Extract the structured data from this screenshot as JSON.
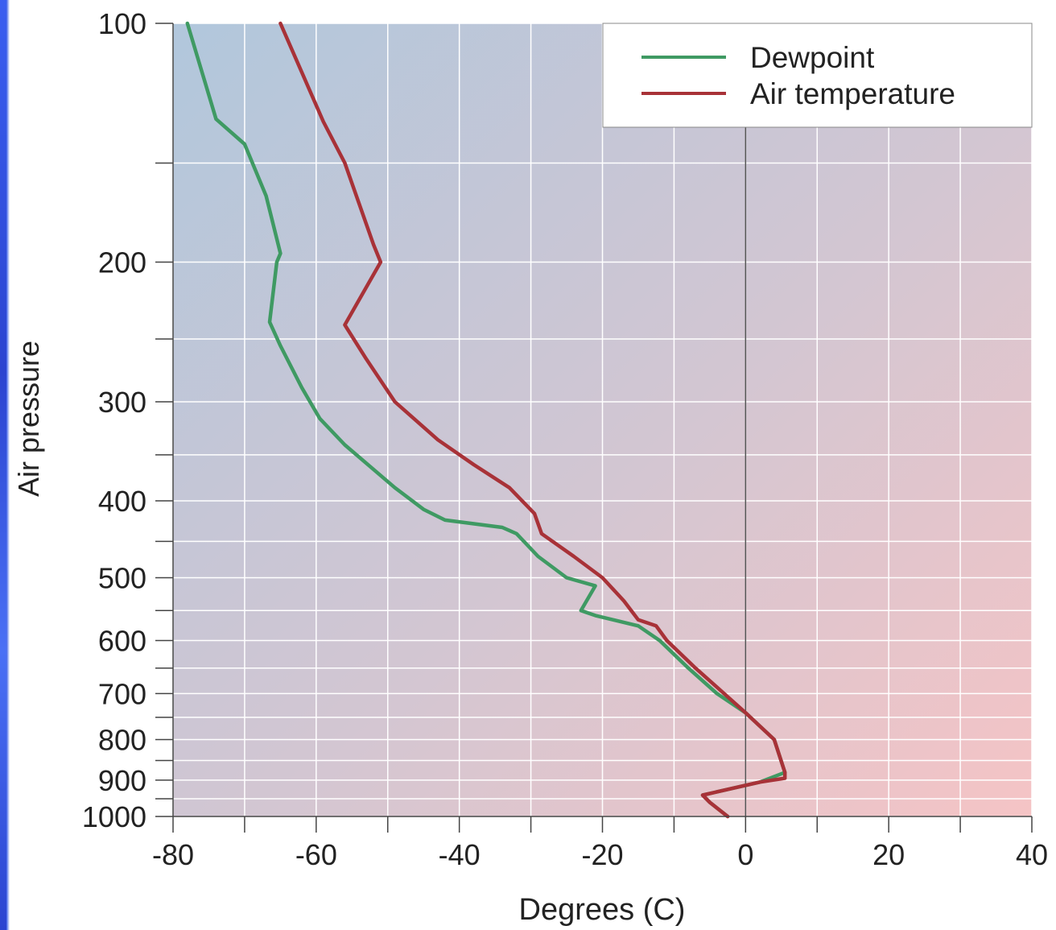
{
  "colors": {
    "dewpoint": "#3f9a63",
    "air_temperature": "#a83238",
    "plot_bg_left": "#b3c9dd",
    "plot_bg_right": "#f2c7c9",
    "grid": "#ffffff",
    "zero_line": "#555555",
    "frame": "#2b4fe0"
  },
  "chart_data": {
    "type": "line",
    "xlabel": "Degrees (C)",
    "ylabel": "Air pressure",
    "xlim": [
      -80,
      40
    ],
    "ylim": [
      1000,
      100
    ],
    "y_scale": "log",
    "y_inverted": true,
    "x_ticks": [
      "-80",
      "-60",
      "-40",
      "-20",
      "0",
      "20",
      "40"
    ],
    "y_ticks": [
      "100",
      "200",
      "300",
      "400",
      "500",
      "600",
      "700",
      "800",
      "900",
      "1000"
    ],
    "grid": true,
    "legend_position": "top-right",
    "series": [
      {
        "name": "Dewpoint",
        "color": "#3f9a63",
        "points": [
          [
            -78,
            100
          ],
          [
            -74,
            132
          ],
          [
            -70,
            142
          ],
          [
            -67,
            165
          ],
          [
            -65,
            195
          ],
          [
            -65.5,
            200
          ],
          [
            -66.5,
            238
          ],
          [
            -65,
            255
          ],
          [
            -62,
            288
          ],
          [
            -59.5,
            315
          ],
          [
            -56,
            340
          ],
          [
            -52,
            365
          ],
          [
            -49,
            385
          ],
          [
            -45,
            410
          ],
          [
            -42,
            423
          ],
          [
            -34,
            432
          ],
          [
            -32,
            440
          ],
          [
            -29,
            470
          ],
          [
            -25,
            500
          ],
          [
            -21,
            512
          ],
          [
            -23,
            550
          ],
          [
            -21,
            558
          ],
          [
            -15,
            575
          ],
          [
            -12,
            600
          ],
          [
            -8,
            650
          ],
          [
            -4,
            700
          ],
          [
            0,
            740
          ],
          [
            4,
            800
          ],
          [
            5.5,
            880
          ],
          [
            2,
            905
          ],
          [
            -6,
            940
          ],
          [
            -5,
            960
          ],
          [
            -2.5,
            1000
          ]
        ]
      },
      {
        "name": "Air temperature",
        "color": "#a83238",
        "points": [
          [
            -65,
            100
          ],
          [
            -59,
            133
          ],
          [
            -56,
            150
          ],
          [
            -52,
            190
          ],
          [
            -51,
            200
          ],
          [
            -56,
            240
          ],
          [
            -53,
            265
          ],
          [
            -49,
            300
          ],
          [
            -43,
            335
          ],
          [
            -38,
            360
          ],
          [
            -33,
            385
          ],
          [
            -29.5,
            415
          ],
          [
            -28.5,
            440
          ],
          [
            -24,
            470
          ],
          [
            -20,
            500
          ],
          [
            -17,
            535
          ],
          [
            -15,
            565
          ],
          [
            -12.5,
            575
          ],
          [
            -11,
            600
          ],
          [
            -7,
            650
          ],
          [
            -3,
            700
          ],
          [
            0,
            740
          ],
          [
            4,
            800
          ],
          [
            5.5,
            880
          ],
          [
            5.5,
            895
          ],
          [
            2,
            905
          ],
          [
            -6,
            940
          ],
          [
            -5,
            960
          ],
          [
            -2.5,
            1000
          ]
        ]
      }
    ]
  }
}
